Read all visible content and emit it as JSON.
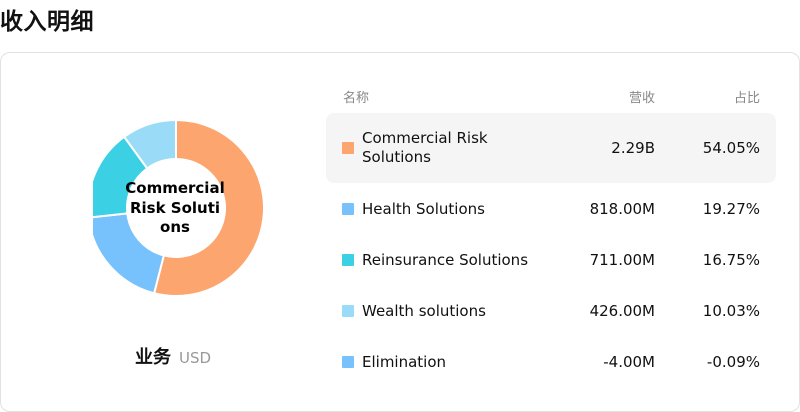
{
  "page": {
    "title": "收入明细"
  },
  "donut": {
    "center_label": "Commercial Risk Solutions"
  },
  "subtitle": {
    "main": "业务",
    "unit": "USD"
  },
  "table": {
    "headers": {
      "name": "名称",
      "revenue": "营收",
      "share": "占比"
    },
    "rows": [
      {
        "name": "Commercial Risk Solutions",
        "revenue": "2.29B",
        "share": "54.05%",
        "color": "#fda56f"
      },
      {
        "name": "Health Solutions",
        "revenue": "818.00M",
        "share": "19.27%",
        "color": "#77c2fc"
      },
      {
        "name": "Reinsurance Solutions",
        "revenue": "711.00M",
        "share": "16.75%",
        "color": "#3bd0e4"
      },
      {
        "name": "Wealth solutions",
        "revenue": "426.00M",
        "share": "10.03%",
        "color": "#9adcf7"
      },
      {
        "name": "Elimination",
        "revenue": "-4.00M",
        "share": "-0.09%",
        "color": "#77c2fc"
      }
    ]
  },
  "chart_data": {
    "type": "pie",
    "categories": [
      "Commercial Risk Solutions",
      "Health Solutions",
      "Reinsurance Solutions",
      "Wealth solutions"
    ],
    "values": [
      54.05,
      19.27,
      16.75,
      10.03
    ],
    "colors": [
      "#fda56f",
      "#77c2fc",
      "#3bd0e4",
      "#9adcf7"
    ]
  }
}
